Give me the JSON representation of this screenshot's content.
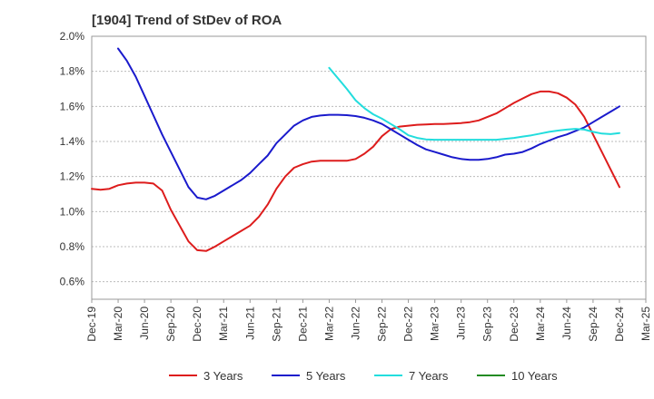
{
  "chart_data": {
    "type": "line",
    "title": "[1904]  Trend of StDev of ROA",
    "xlabel": "",
    "ylabel": "",
    "x_ticks": [
      "Dec-19",
      "Mar-20",
      "Jun-20",
      "Sep-20",
      "Dec-20",
      "Mar-21",
      "Jun-21",
      "Sep-21",
      "Dec-21",
      "Mar-22",
      "Jun-22",
      "Sep-22",
      "Dec-22",
      "Mar-23",
      "Jun-23",
      "Sep-23",
      "Dec-23",
      "Mar-24",
      "Jun-24",
      "Sep-24",
      "Dec-24",
      "Mar-25"
    ],
    "y_ticks": [
      "0.6%",
      "0.8%",
      "1.0%",
      "1.2%",
      "1.4%",
      "1.6%",
      "1.8%",
      "2.0%"
    ],
    "ylim": [
      0.5,
      2.0
    ],
    "y_unit": "%",
    "grid": "horizontal",
    "legend_position": "bottom",
    "series": [
      {
        "name": "3 Years",
        "color": "#dd1c1c",
        "points": [
          [
            "Dec-19",
            1.13
          ],
          [
            "Jan-20",
            1.125
          ],
          [
            "Feb-20",
            1.13
          ],
          [
            "Mar-20",
            1.15
          ],
          [
            "Apr-20",
            1.16
          ],
          [
            "May-20",
            1.165
          ],
          [
            "Jun-20",
            1.165
          ],
          [
            "Jul-20",
            1.16
          ],
          [
            "Aug-20",
            1.12
          ],
          [
            "Sep-20",
            1.01
          ],
          [
            "Oct-20",
            0.92
          ],
          [
            "Nov-20",
            0.83
          ],
          [
            "Dec-20",
            0.78
          ],
          [
            "Jan-21",
            0.775
          ],
          [
            "Feb-21",
            0.8
          ],
          [
            "Mar-21",
            0.83
          ],
          [
            "Apr-21",
            0.86
          ],
          [
            "May-21",
            0.89
          ],
          [
            "Jun-21",
            0.92
          ],
          [
            "Jul-21",
            0.97
          ],
          [
            "Aug-21",
            1.04
          ],
          [
            "Sep-21",
            1.13
          ],
          [
            "Oct-21",
            1.2
          ],
          [
            "Nov-21",
            1.25
          ],
          [
            "Dec-21",
            1.27
          ],
          [
            "Jan-22",
            1.285
          ],
          [
            "Feb-22",
            1.29
          ],
          [
            "Mar-22",
            1.29
          ],
          [
            "Apr-22",
            1.29
          ],
          [
            "May-22",
            1.29
          ],
          [
            "Jun-22",
            1.3
          ],
          [
            "Jul-22",
            1.33
          ],
          [
            "Aug-22",
            1.37
          ],
          [
            "Sep-22",
            1.43
          ],
          [
            "Oct-22",
            1.47
          ],
          [
            "Nov-22",
            1.485
          ],
          [
            "Dec-22",
            1.49
          ],
          [
            "Jan-23",
            1.495
          ],
          [
            "Feb-23",
            1.497
          ],
          [
            "Mar-23",
            1.5
          ],
          [
            "Apr-23",
            1.5
          ],
          [
            "May-23",
            1.502
          ],
          [
            "Jun-23",
            1.505
          ],
          [
            "Jul-23",
            1.51
          ],
          [
            "Aug-23",
            1.52
          ],
          [
            "Sep-23",
            1.54
          ],
          [
            "Oct-23",
            1.56
          ],
          [
            "Nov-23",
            1.59
          ],
          [
            "Dec-23",
            1.62
          ],
          [
            "Jan-24",
            1.645
          ],
          [
            "Feb-24",
            1.67
          ],
          [
            "Mar-24",
            1.685
          ],
          [
            "Apr-24",
            1.685
          ],
          [
            "May-24",
            1.675
          ],
          [
            "Jun-24",
            1.65
          ],
          [
            "Jul-24",
            1.61
          ],
          [
            "Aug-24",
            1.54
          ],
          [
            "Sep-24",
            1.44
          ],
          [
            "Oct-24",
            1.34
          ],
          [
            "Nov-24",
            1.24
          ],
          [
            "Dec-24",
            1.14
          ]
        ]
      },
      {
        "name": "5 Years",
        "color": "#1a1acc",
        "points": [
          [
            "Mar-20",
            1.93
          ],
          [
            "Apr-20",
            1.86
          ],
          [
            "May-20",
            1.77
          ],
          [
            "Jun-20",
            1.66
          ],
          [
            "Jul-20",
            1.55
          ],
          [
            "Aug-20",
            1.44
          ],
          [
            "Sep-20",
            1.34
          ],
          [
            "Oct-20",
            1.24
          ],
          [
            "Nov-20",
            1.14
          ],
          [
            "Dec-20",
            1.08
          ],
          [
            "Jan-21",
            1.07
          ],
          [
            "Feb-21",
            1.09
          ],
          [
            "Mar-21",
            1.12
          ],
          [
            "Apr-21",
            1.15
          ],
          [
            "May-21",
            1.18
          ],
          [
            "Jun-21",
            1.22
          ],
          [
            "Jul-21",
            1.27
          ],
          [
            "Aug-21",
            1.32
          ],
          [
            "Sep-21",
            1.39
          ],
          [
            "Oct-21",
            1.44
          ],
          [
            "Nov-21",
            1.49
          ],
          [
            "Dec-21",
            1.52
          ],
          [
            "Jan-22",
            1.54
          ],
          [
            "Feb-22",
            1.548
          ],
          [
            "Mar-22",
            1.552
          ],
          [
            "Apr-22",
            1.552
          ],
          [
            "May-22",
            1.55
          ],
          [
            "Jun-22",
            1.545
          ],
          [
            "Jul-22",
            1.535
          ],
          [
            "Aug-22",
            1.52
          ],
          [
            "Sep-22",
            1.5
          ],
          [
            "Oct-22",
            1.47
          ],
          [
            "Nov-22",
            1.44
          ],
          [
            "Dec-22",
            1.41
          ],
          [
            "Jan-23",
            1.38
          ],
          [
            "Feb-23",
            1.355
          ],
          [
            "Mar-23",
            1.34
          ],
          [
            "Apr-23",
            1.325
          ],
          [
            "May-23",
            1.31
          ],
          [
            "Jun-23",
            1.3
          ],
          [
            "Jul-23",
            1.295
          ],
          [
            "Aug-23",
            1.295
          ],
          [
            "Sep-23",
            1.3
          ],
          [
            "Oct-23",
            1.31
          ],
          [
            "Nov-23",
            1.325
          ],
          [
            "Dec-23",
            1.33
          ],
          [
            "Jan-24",
            1.34
          ],
          [
            "Feb-24",
            1.36
          ],
          [
            "Mar-24",
            1.385
          ],
          [
            "Apr-24",
            1.405
          ],
          [
            "May-24",
            1.425
          ],
          [
            "Jun-24",
            1.44
          ],
          [
            "Jul-24",
            1.46
          ],
          [
            "Aug-24",
            1.48
          ],
          [
            "Sep-24",
            1.51
          ],
          [
            "Oct-24",
            1.54
          ],
          [
            "Nov-24",
            1.57
          ],
          [
            "Dec-24",
            1.6
          ]
        ]
      },
      {
        "name": "7 Years",
        "color": "#22dddd",
        "points": [
          [
            "Mar-22",
            1.82
          ],
          [
            "Apr-22",
            1.76
          ],
          [
            "May-22",
            1.7
          ],
          [
            "Jun-22",
            1.635
          ],
          [
            "Jul-22",
            1.59
          ],
          [
            "Aug-22",
            1.555
          ],
          [
            "Sep-22",
            1.53
          ],
          [
            "Oct-22",
            1.5
          ],
          [
            "Nov-22",
            1.47
          ],
          [
            "Dec-22",
            1.435
          ],
          [
            "Jan-23",
            1.42
          ],
          [
            "Feb-23",
            1.412
          ],
          [
            "Mar-23",
            1.41
          ],
          [
            "Apr-23",
            1.41
          ],
          [
            "May-23",
            1.41
          ],
          [
            "Jun-23",
            1.41
          ],
          [
            "Jul-23",
            1.41
          ],
          [
            "Aug-23",
            1.41
          ],
          [
            "Sep-23",
            1.41
          ],
          [
            "Oct-23",
            1.41
          ],
          [
            "Nov-23",
            1.415
          ],
          [
            "Dec-23",
            1.42
          ],
          [
            "Jan-24",
            1.428
          ],
          [
            "Feb-24",
            1.435
          ],
          [
            "Mar-24",
            1.445
          ],
          [
            "Apr-24",
            1.455
          ],
          [
            "May-24",
            1.462
          ],
          [
            "Jun-24",
            1.468
          ],
          [
            "Jul-24",
            1.472
          ],
          [
            "Aug-24",
            1.468
          ],
          [
            "Sep-24",
            1.455
          ],
          [
            "Oct-24",
            1.445
          ],
          [
            "Nov-24",
            1.442
          ],
          [
            "Dec-24",
            1.448
          ]
        ]
      },
      {
        "name": "10 Years",
        "color": "#228b22",
        "points": []
      }
    ]
  }
}
